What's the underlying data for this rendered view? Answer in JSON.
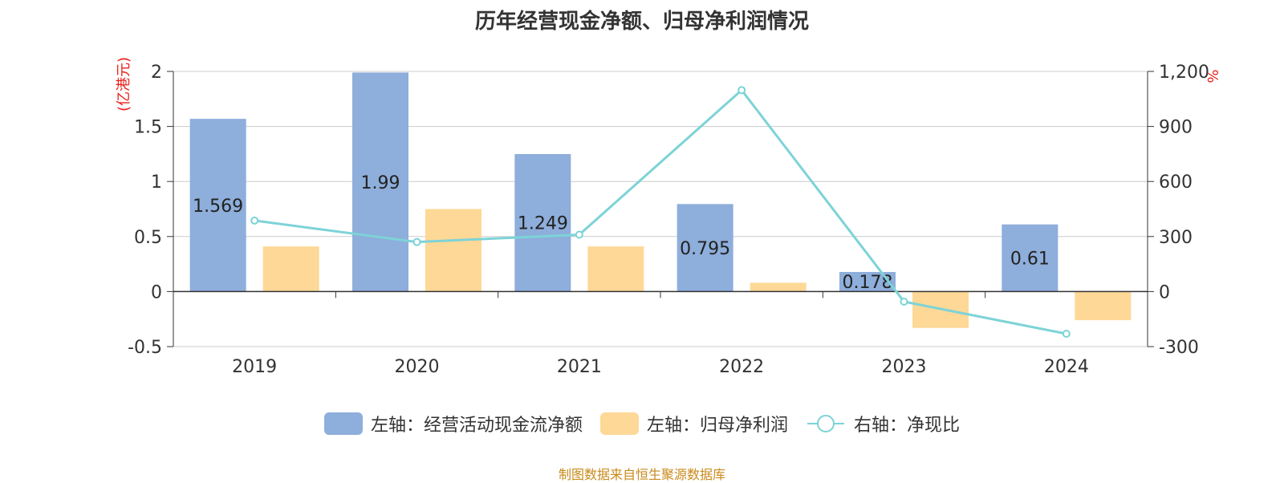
{
  "title": "历年经营现金净额、归母净利润情况",
  "left_unit": "(亿港元)",
  "right_unit": "%",
  "source": "制图数据来自恒生聚源数据库",
  "colors": {
    "cash": "#8eaedb",
    "profit": "#fed896",
    "ratio": "#7dd3d7",
    "unit": "#e8211a",
    "source": "#c98a1b"
  },
  "legend": {
    "cash": "左轴：经营活动现金流净额",
    "profit": "左轴：归母净利润",
    "ratio": "右轴：净现比"
  },
  "chart_data": {
    "type": "bar",
    "categories": [
      "2019",
      "2020",
      "2021",
      "2022",
      "2023",
      "2024"
    ],
    "series": [
      {
        "name": "左轴：经营活动现金流净额",
        "axis": "left",
        "type": "bar",
        "values": [
          1.569,
          1.99,
          1.249,
          0.795,
          0.178,
          0.61
        ],
        "labels": [
          "1.569",
          "1.99",
          "1.249",
          "0.795",
          "0.178",
          "0.61"
        ]
      },
      {
        "name": "左轴：归母净利润",
        "axis": "left",
        "type": "bar",
        "values": [
          0.41,
          0.75,
          0.41,
          0.08,
          -0.33,
          -0.26
        ]
      },
      {
        "name": "右轴：净现比",
        "axis": "right",
        "type": "line",
        "values": [
          387,
          270,
          310,
          1098,
          -55,
          -230
        ]
      }
    ],
    "left_axis": {
      "ylim": [
        -0.5,
        2
      ],
      "ticks": [
        "-0.5",
        "0",
        "0.5",
        "1",
        "1.5",
        "2"
      ],
      "tick_values": [
        -0.5,
        0,
        0.5,
        1,
        1.5,
        2
      ]
    },
    "right_axis": {
      "ylim": [
        -300,
        1200
      ],
      "ticks": [
        "-300",
        "0",
        "300",
        "600",
        "900",
        "1,200"
      ],
      "tick_values": [
        -300,
        0,
        300,
        600,
        900,
        1200
      ]
    },
    "grid": true,
    "legend_position": "bottom"
  }
}
